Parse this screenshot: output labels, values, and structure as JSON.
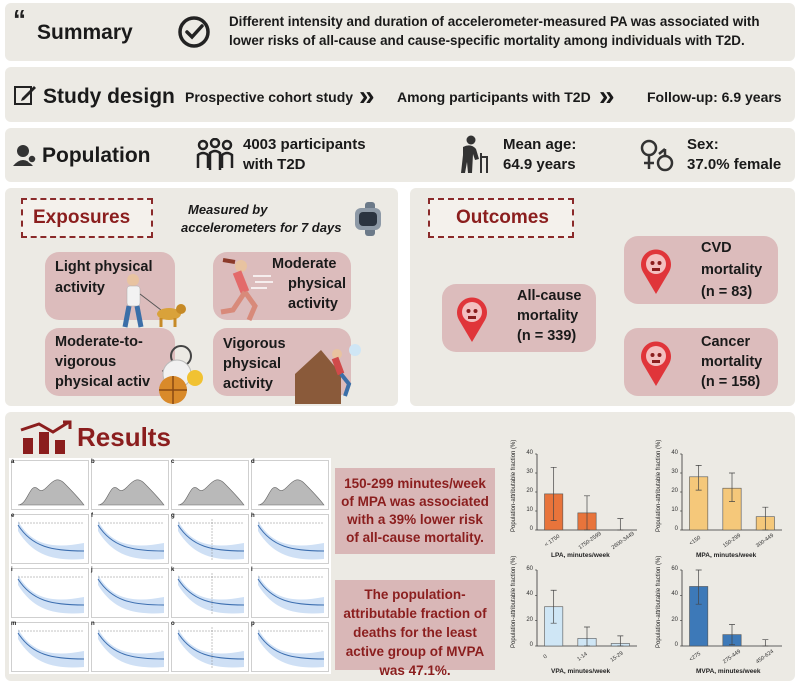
{
  "summary": {
    "heading": "Summary",
    "text_line1": "Different intensity and duration of accelerometer-measured PA was associated with",
    "text_line2": "lower risks of all-cause and cause-specific mortality among individuals with T2D."
  },
  "design": {
    "heading": "Study design",
    "step1": "Prospective cohort study",
    "step2": "Among participants with T2D",
    "step3": "Follow-up: 6.9 years"
  },
  "population": {
    "heading": "Population",
    "participants_l1": "4003 participants",
    "participants_l2": "with T2D",
    "age_l1": "Mean age:",
    "age_l2": "64.9 years",
    "sex_l1": "Sex:",
    "sex_l2": "37.0% female"
  },
  "exposures": {
    "heading": "Exposures",
    "measured_l1": "Measured by",
    "measured_l2": "accelerometers for 7 days",
    "light_l1": "Light physical",
    "light_l2": "activity",
    "moderate_l1": "Moderate",
    "moderate_l2": "physical",
    "moderate_l3": "activity",
    "mvpa_l1": "Moderate-to-",
    "mvpa_l2": "vigorous",
    "mvpa_l3": "physical activ",
    "vig_l1": "Vigorous",
    "vig_l2": "physical",
    "vig_l3": "activity"
  },
  "outcomes": {
    "heading": "Outcomes",
    "allcause_l1": "All-cause",
    "allcause_l2": "mortality",
    "allcause_l3": "(n = 339)",
    "cvd_l1": "CVD",
    "cvd_l2": "mortality",
    "cvd_l3": "(n = 83)",
    "cancer_l1": "Cancer",
    "cancer_l2": "mortality",
    "cancer_l3": "(n = 158)"
  },
  "results": {
    "heading": "Results",
    "finding1": "150-299 minutes/week of MPA was associated with a 39% lower risk of all-cause mortality.",
    "finding2": "The population-attributable fraction of deaths for the least active group of MVPA was 47.1%.",
    "curve_panel_letters": [
      "a",
      "b",
      "c",
      "d",
      "e",
      "f",
      "g",
      "h",
      "i",
      "j",
      "k",
      "l",
      "m",
      "n",
      "o",
      "p"
    ]
  },
  "colors": {
    "accent": "#8b1e1e",
    "panel": "#eceae4",
    "pink": "#dcbcbc",
    "lpa": "#e8743b",
    "mpa": "#f5c87a",
    "vpa": "#cfe6f5",
    "mvpa": "#3d79b8"
  },
  "chart_data": [
    {
      "type": "bar",
      "ylabel": "Population-attributable fraction (%)",
      "xlabel": "LPA, minutes/week",
      "categories": [
        "< 1750",
        "1750-2599",
        "2600-3449"
      ],
      "values": [
        19,
        9,
        0
      ],
      "errors": [
        [
          5,
          33
        ],
        [
          0,
          18
        ],
        [
          0,
          6
        ]
      ],
      "ylim": [
        0,
        40
      ],
      "yticks": [
        0,
        10,
        20,
        30,
        40
      ],
      "color": "#e8743b"
    },
    {
      "type": "bar",
      "ylabel": "Population-attributable fraction (%)",
      "xlabel": "MPA, minutes/week",
      "categories": [
        "<150",
        "150-299",
        "300-449"
      ],
      "values": [
        28,
        22,
        7
      ],
      "errors": [
        [
          21,
          34
        ],
        [
          15,
          30
        ],
        [
          0,
          12
        ]
      ],
      "ylim": [
        0,
        40
      ],
      "yticks": [
        0,
        10,
        20,
        30,
        40
      ],
      "color": "#f5c87a"
    },
    {
      "type": "bar",
      "ylabel": "Population-attributable fraction (%)",
      "xlabel": "VPA, minutes/week",
      "categories": [
        "0",
        "1-14",
        "15-29"
      ],
      "values": [
        31,
        6,
        2
      ],
      "errors": [
        [
          18,
          44
        ],
        [
          0,
          15
        ],
        [
          0,
          8
        ]
      ],
      "ylim": [
        0,
        60
      ],
      "yticks": [
        0,
        20,
        40,
        60
      ],
      "color": "#cfe6f5"
    },
    {
      "type": "bar",
      "ylabel": "Population-attributable fraction (%)",
      "xlabel": "MVPA, minutes/week",
      "categories": [
        "<275",
        "275-449",
        "450-624"
      ],
      "values": [
        47,
        9,
        0
      ],
      "errors": [
        [
          33,
          60
        ],
        [
          1,
          17
        ],
        [
          0,
          5
        ]
      ],
      "ylim": [
        0,
        60
      ],
      "yticks": [
        0,
        20,
        40,
        60
      ],
      "color": "#3d79b8"
    }
  ]
}
